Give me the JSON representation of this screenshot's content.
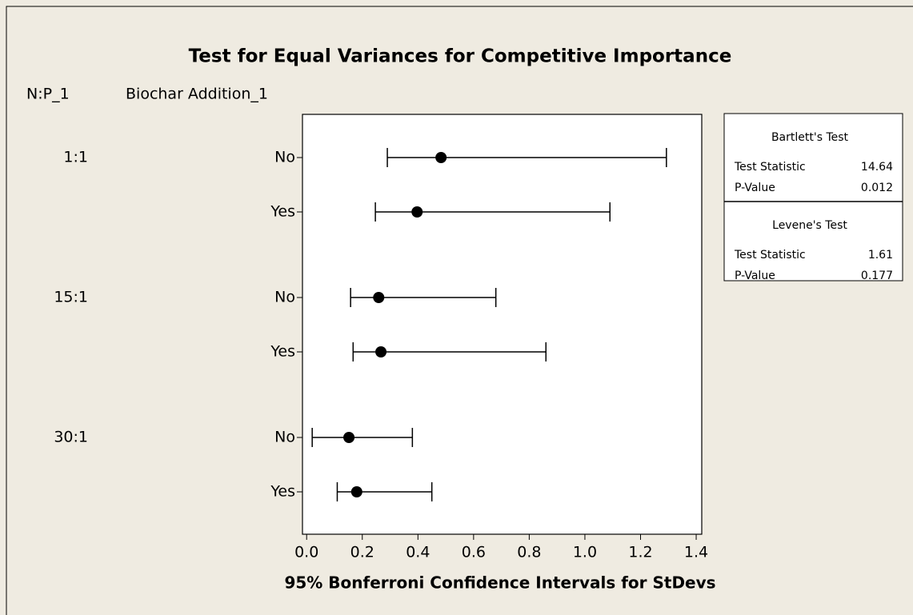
{
  "chart_data": {
    "type": "interval",
    "title": "Test for Equal Variances for Competitive Importance",
    "x_label": "95% Bonferroni Confidence Intervals for StDevs",
    "group_header": "N:P_1",
    "category_header": "Biochar Addition_1",
    "groups": [
      "1:1",
      "15:1",
      "30:1"
    ],
    "categories": [
      "No",
      "Yes",
      "No",
      "Yes",
      "No",
      "Yes"
    ],
    "values": [
      0.483,
      0.397,
      0.259,
      0.267,
      0.152,
      0.18
    ],
    "lower": [
      0.29,
      0.247,
      0.158,
      0.167,
      0.02,
      0.11
    ],
    "upper": [
      1.293,
      1.09,
      0.68,
      0.86,
      0.38,
      0.45
    ],
    "color": "#000000",
    "xlim": [
      -0.015,
      1.42
    ],
    "xticks": [
      {
        "value": 0,
        "label": "0.0"
      },
      0.2,
      0.4,
      0.6,
      0.8,
      {
        "value": 1,
        "label": "1.0"
      },
      1.2,
      1.4
    ],
    "tests": [
      {
        "title": "Bartlett's Test",
        "rows": [
          [
            "Test Statistic",
            14.64
          ],
          [
            "P-Value",
            0.012
          ]
        ]
      },
      {
        "title": "Levene's Test",
        "rows": [
          [
            "Test Statistic",
            1.61
          ],
          [
            "P-Value",
            0.177
          ]
        ]
      }
    ]
  }
}
